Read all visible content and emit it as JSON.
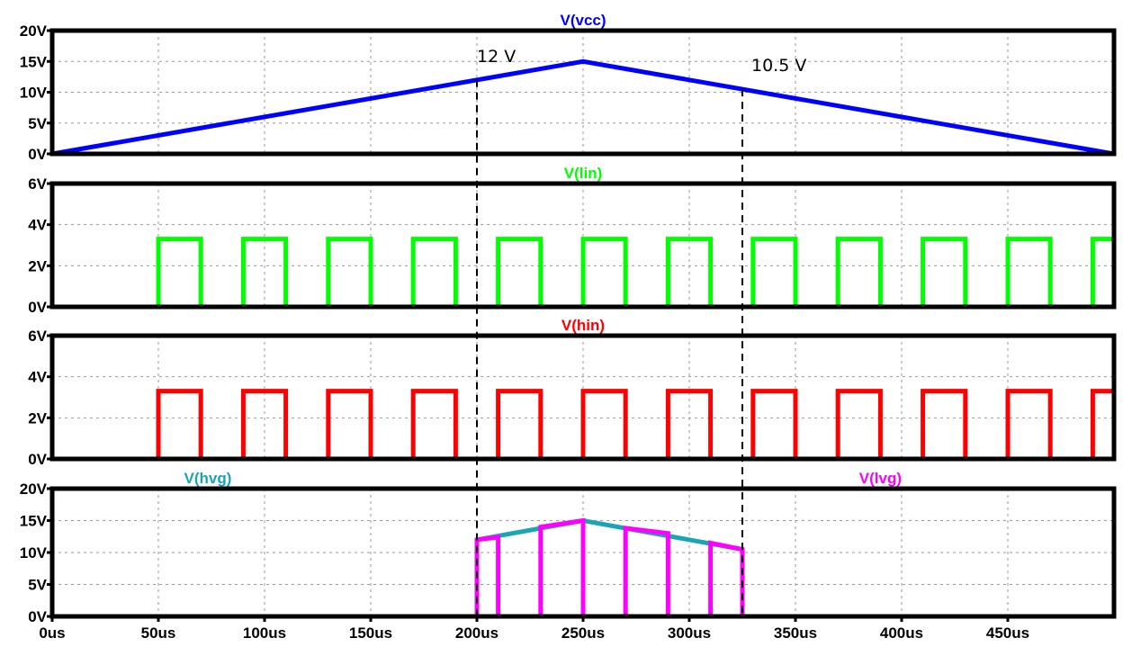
{
  "chart_data": [
    {
      "type": "line",
      "title": "V(vcc)",
      "title_color": "#0000ff",
      "xlim": [
        0,
        500
      ],
      "ylim": [
        0,
        20
      ],
      "y_ticks": [
        0,
        5,
        10,
        15,
        20
      ],
      "y_tick_labels": [
        "0V",
        "5V",
        "10V",
        "15V",
        "20V"
      ],
      "grid": true,
      "series": [
        {
          "name": "V(vcc)",
          "color": "#0000ff",
          "x": [
            0,
            250,
            500
          ],
          "y": [
            0,
            15,
            0
          ]
        }
      ],
      "annotations": [
        {
          "text": "12 V",
          "x": 200,
          "y": 12
        },
        {
          "text": "10.5 V",
          "x": 325,
          "y": 10.5
        }
      ]
    },
    {
      "type": "line",
      "title": "V(lin)",
      "title_color": "#00ff00",
      "xlim": [
        0,
        500
      ],
      "ylim": [
        0,
        6
      ],
      "y_ticks": [
        0,
        2,
        4,
        6
      ],
      "y_tick_labels": [
        "0V",
        "2V",
        "4V",
        "6V"
      ],
      "grid": true,
      "series": [
        {
          "name": "V(lin)",
          "color": "#00ff00",
          "high": 3.3,
          "period": 40,
          "rise_start": 50,
          "high_duration": 20
        }
      ]
    },
    {
      "type": "line",
      "title": "V(hin)",
      "title_color": "#ff0000",
      "xlim": [
        0,
        500
      ],
      "ylim": [
        0,
        6
      ],
      "y_ticks": [
        0,
        2,
        4,
        6
      ],
      "y_tick_labels": [
        "0V",
        "2V",
        "4V",
        "6V"
      ],
      "grid": true,
      "series": [
        {
          "name": "V(hin)",
          "color": "#ff0000",
          "high": 3.3,
          "period": 40,
          "rise_start": 50,
          "high_duration": 20
        }
      ]
    },
    {
      "type": "line",
      "title": "",
      "xlim": [
        0,
        500
      ],
      "ylim": [
        0,
        20
      ],
      "y_ticks": [
        0,
        5,
        10,
        15,
        20
      ],
      "y_tick_labels": [
        "0V",
        "5V",
        "10V",
        "15V",
        "20V"
      ],
      "x_ticks": [
        0,
        50,
        100,
        150,
        200,
        250,
        300,
        350,
        400,
        450
      ],
      "x_tick_labels": [
        "0us",
        "50us",
        "100us",
        "150us",
        "200us",
        "250us",
        "300us",
        "350us",
        "400us",
        "450us"
      ],
      "grid": true,
      "series": [
        {
          "name": "V(hvg)",
          "color": "#1aa5b5",
          "x": [
            0,
            200,
            200,
            250,
            325,
            325,
            500
          ],
          "y": [
            0,
            0,
            12,
            15,
            10.5,
            0,
            0
          ]
        },
        {
          "name": "V(lvg)",
          "color": "#ff00ff",
          "x": [
            0,
            200,
            200,
            200,
            210,
            210,
            230,
            230,
            250,
            250,
            270,
            270,
            290,
            290,
            310,
            310,
            325,
            325,
            500
          ],
          "y": [
            0,
            0,
            0,
            12,
            12.4,
            0,
            0,
            14,
            15,
            0,
            0,
            13.8,
            13,
            0,
            0,
            11.5,
            10.5,
            0,
            0
          ]
        }
      ]
    }
  ]
}
